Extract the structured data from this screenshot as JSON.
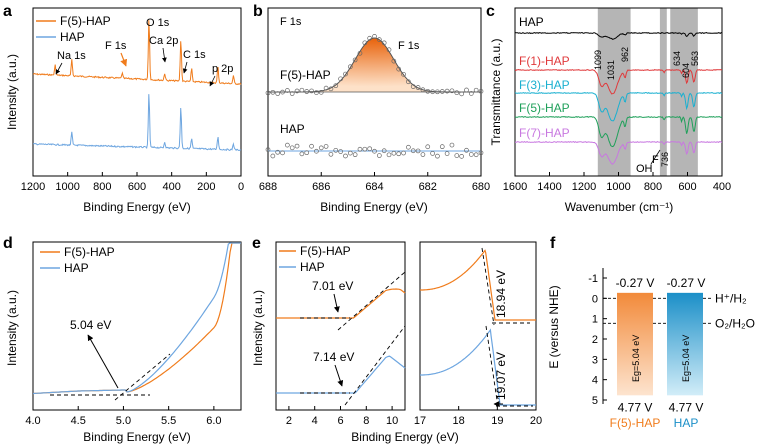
{
  "colors": {
    "orange": "#f07c1c",
    "blue": "#6ea6e0",
    "red": "#e0393b",
    "cyan": "#1ab0d0",
    "green": "#1fa05a",
    "violet": "#c878e0",
    "shade": "#a8a8a8",
    "black": "#000000"
  },
  "chart_data": [
    {
      "id": "a",
      "type": "line",
      "panel_label": "a",
      "xlabel": "Binding Energy (eV)",
      "ylabel": "Intensity (a.u.)",
      "xlim": [
        1200,
        0
      ],
      "xticks": [
        1200,
        1000,
        800,
        600,
        400,
        200,
        0
      ],
      "legend": [
        "F(5)-HAP",
        "HAP"
      ],
      "annotations": [
        "Na 1s",
        "F 1s",
        "O 1s",
        "Ca 2p",
        "C 1s",
        "p 2p"
      ],
      "series": [
        {
          "name": "F(5)-HAP",
          "peaks": [
            {
              "x": 1072,
              "h": 0.1
            },
            {
              "x": 976,
              "h": 0.16
            },
            {
              "x": 685,
              "h": 0.05
            },
            {
              "x": 531,
              "h": 0.62
            },
            {
              "x": 440,
              "h": 0.07
            },
            {
              "x": 347,
              "h": 0.42
            },
            {
              "x": 285,
              "h": 0.13
            },
            {
              "x": 133,
              "h": 0.16
            },
            {
              "x": 44,
              "h": 0.08
            }
          ]
        },
        {
          "name": "HAP",
          "peaks": [
            {
              "x": 976,
              "h": 0.13
            },
            {
              "x": 531,
              "h": 0.55
            },
            {
              "x": 440,
              "h": 0.06
            },
            {
              "x": 347,
              "h": 0.42
            },
            {
              "x": 285,
              "h": 0.1
            },
            {
              "x": 133,
              "h": 0.13
            },
            {
              "x": 44,
              "h": 0.06
            }
          ]
        }
      ]
    },
    {
      "id": "b",
      "type": "scatter",
      "panel_label": "b",
      "title": "F 1s",
      "xlabel": "Binding Energy (eV)",
      "xlim": [
        688,
        680
      ],
      "xticks": [
        688,
        686,
        684,
        682,
        680
      ],
      "annotations": [
        "F 1s"
      ],
      "series": [
        {
          "name": "F(5)-HAP",
          "peak_center": 684.0,
          "fwhm": 1.7,
          "fitted": true
        },
        {
          "name": "HAP",
          "peak_center": null,
          "fitted": false
        }
      ]
    },
    {
      "id": "c",
      "type": "line",
      "panel_label": "c",
      "xlabel": "Wavenumber (cm⁻¹)",
      "ylabel": "Transmittance (a.u.)",
      "xlim": [
        1600,
        400
      ],
      "xticks": [
        1600,
        1400,
        1200,
        1000,
        800,
        600,
        400
      ],
      "shaded_ranges": [
        [
          1120,
          930
        ],
        [
          760,
          720
        ],
        [
          700,
          540
        ]
      ],
      "band_labels": [
        "1099",
        "1031",
        "962",
        "634",
        "604",
        "563",
        "OH",
        "F",
        "736"
      ],
      "series": [
        {
          "name": "HAP",
          "color": "black"
        },
        {
          "name": "F(1)-HAP",
          "color": "red"
        },
        {
          "name": "F(3)-HAP",
          "color": "cyan"
        },
        {
          "name": "F(5)-HAP",
          "color": "green"
        },
        {
          "name": "F(7)-HAP",
          "color": "violet"
        }
      ]
    },
    {
      "id": "d",
      "type": "line",
      "panel_label": "d",
      "xlabel": "Binding Energy (eV)",
      "ylabel": "Intensity (a.u.)",
      "xlim": [
        4.0,
        6.3
      ],
      "xticks": [
        4.0,
        4.5,
        5.0,
        5.5,
        6.0
      ],
      "legend": [
        "F(5)-HAP",
        "HAP"
      ],
      "edge_value_label": "5.04 eV",
      "edge_value": 5.04
    },
    {
      "id": "e1",
      "type": "line",
      "panel_label": "e",
      "xlabel": "Binding Energy (eV)",
      "ylabel": "Intensity (a.u.)",
      "xlim": [
        1,
        11
      ],
      "xticks": [
        2,
        4,
        6,
        8,
        10
      ],
      "legend": [
        "F(5)-HAP",
        "HAP"
      ],
      "onsets": [
        {
          "series": "F(5)-HAP",
          "value": 7.01,
          "label": "7.01 eV"
        },
        {
          "series": "HAP",
          "value": 7.14,
          "label": "7.14 eV"
        }
      ]
    },
    {
      "id": "e2",
      "type": "line",
      "xlim": [
        17,
        20
      ],
      "xticks": [
        17,
        18,
        19,
        20
      ],
      "cutoffs": [
        {
          "series": "F(5)-HAP",
          "value": 18.94,
          "label": "18.94 eV"
        },
        {
          "series": "HAP",
          "value": 19.07,
          "label": "19.07 eV"
        }
      ]
    },
    {
      "id": "f",
      "type": "bar",
      "panel_label": "f",
      "ylabel": "E (versus NHE)",
      "ylim": [
        -1.8,
        5.2
      ],
      "yticks": [
        -1,
        0,
        1,
        2,
        3,
        4,
        5
      ],
      "categories": [
        "F(5)-HAP",
        "HAP"
      ],
      "cb_labels": [
        "-0.27 V",
        "-0.27 V"
      ],
      "vb_labels": [
        "4.77 V",
        "4.77 V"
      ],
      "cb_values": [
        -0.27,
        -0.27
      ],
      "vb_values": [
        4.77,
        4.77
      ],
      "gap_labels": [
        "Eg=5.04 eV",
        "Eg=5.04 eV"
      ],
      "reference_lines": [
        {
          "label": "H⁺/H₂",
          "value": 0.0
        },
        {
          "label": "O₂/H₂O",
          "value": 1.23
        }
      ]
    }
  ]
}
